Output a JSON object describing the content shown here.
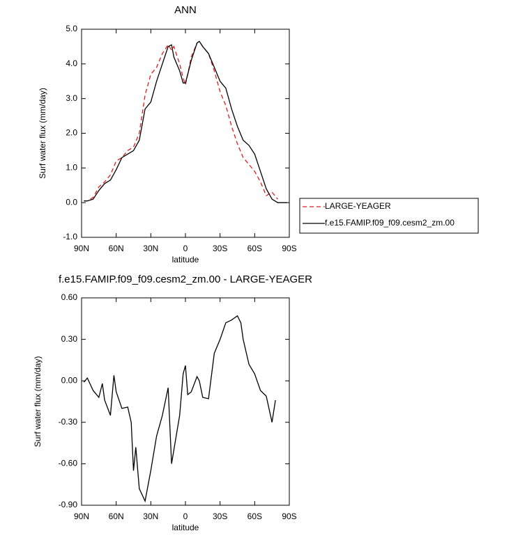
{
  "chart_data": [
    {
      "type": "line",
      "title": "ANN",
      "x_label": "latitude",
      "y_label": "Surf water flux (mm/day)",
      "x": [
        88,
        85,
        80,
        75,
        70,
        65,
        60,
        55,
        50,
        45,
        40,
        35,
        30,
        25,
        20,
        15,
        12,
        10,
        5,
        2,
        0,
        -2,
        -5,
        -10,
        -12,
        -15,
        -20,
        -25,
        -30,
        -35,
        -40,
        -45,
        -50,
        -55,
        -60,
        -65,
        -70,
        -75,
        -80,
        -85,
        -88
      ],
      "series": [
        {
          "name": "LARGE-YEAGER",
          "color": "#e31a1c",
          "style": "dashed",
          "values": [
            0.05,
            0.05,
            0.15,
            0.45,
            0.6,
            0.8,
            1.2,
            1.3,
            1.5,
            1.6,
            2.0,
            3.1,
            3.7,
            3.9,
            4.3,
            4.55,
            4.4,
            4.5,
            4.0,
            3.6,
            3.4,
            3.7,
            4.2,
            4.6,
            4.65,
            4.5,
            4.3,
            3.8,
            3.2,
            2.8,
            2.2,
            1.7,
            1.3,
            1.1,
            0.9,
            0.6,
            0.2,
            0.3,
            0.1,
            null,
            null
          ]
        },
        {
          "name": "f.e15.FAMIP.f09_f09.cesm2_zm.00",
          "color": "#000000",
          "style": "solid",
          "values": [
            0.05,
            0.05,
            0.1,
            0.35,
            0.55,
            0.65,
            0.95,
            1.3,
            1.4,
            1.5,
            1.8,
            2.7,
            2.9,
            3.5,
            4.0,
            4.5,
            4.55,
            4.2,
            3.8,
            3.45,
            3.45,
            3.7,
            4.1,
            4.6,
            4.65,
            4.5,
            4.3,
            3.9,
            3.5,
            3.3,
            2.7,
            2.2,
            1.8,
            1.65,
            1.4,
            0.9,
            0.4,
            0.1,
            0.0,
            0.0,
            0.0
          ]
        }
      ],
      "xlim": [
        90,
        -90
      ],
      "xticks": [
        {
          "value": 90,
          "label": "90N"
        },
        {
          "value": 60,
          "label": "60N"
        },
        {
          "value": 30,
          "label": "30N"
        },
        0,
        {
          "value": -30,
          "label": "30S"
        },
        {
          "value": -60,
          "label": "60S"
        },
        {
          "value": -90,
          "label": "90S"
        }
      ],
      "ylim": [
        -1,
        5
      ],
      "yticks": [
        {
          "value": -1,
          "label": "-1.0"
        },
        {
          "value": 0,
          "label": "0.0"
        },
        {
          "value": 1,
          "label": "1.0"
        },
        {
          "value": 2,
          "label": "2.0"
        },
        {
          "value": 3,
          "label": "3.0"
        },
        {
          "value": 4,
          "label": "4.0"
        },
        {
          "value": 5,
          "label": "5.0"
        }
      ],
      "legend": "right"
    },
    {
      "type": "line",
      "title": "f.e15.FAMIP.f09_f09.cesm2_zm.00 - LARGE-YEAGER",
      "x_label": "latitude",
      "y_label": "Surf water flux (mm/day)",
      "x": [
        88,
        85,
        80,
        75,
        72,
        70,
        65,
        62,
        60,
        55,
        50,
        47,
        45,
        43,
        40,
        35,
        30,
        25,
        20,
        15,
        12,
        10,
        5,
        2,
        0,
        -2,
        -5,
        -10,
        -12,
        -15,
        -20,
        -25,
        -30,
        -35,
        -40,
        -45,
        -48,
        -50,
        -55,
        -60,
        -65,
        -70,
        -75,
        -78
      ],
      "series": [
        {
          "color": "#000000",
          "style": "solid",
          "values": [
            -0.01,
            0.02,
            -0.07,
            -0.12,
            -0.02,
            -0.14,
            -0.25,
            0.04,
            -0.08,
            -0.2,
            -0.19,
            -0.3,
            -0.65,
            -0.48,
            -0.78,
            -0.87,
            -0.65,
            -0.4,
            -0.25,
            -0.05,
            -0.6,
            -0.5,
            -0.25,
            0.05,
            0.11,
            -0.1,
            -0.08,
            0.03,
            0.0,
            -0.12,
            -0.13,
            0.2,
            0.3,
            0.42,
            0.44,
            0.47,
            0.42,
            0.3,
            0.12,
            0.05,
            -0.07,
            -0.11,
            -0.3,
            -0.14
          ]
        }
      ],
      "xlim": [
        90,
        -90
      ],
      "xticks": [
        {
          "value": 90,
          "label": "90N"
        },
        {
          "value": 60,
          "label": "60N"
        },
        {
          "value": 30,
          "label": "30N"
        },
        0,
        {
          "value": -30,
          "label": "30S"
        },
        {
          "value": -60,
          "label": "60S"
        },
        {
          "value": -90,
          "label": "90S"
        }
      ],
      "ylim": [
        -0.9,
        0.6
      ],
      "yticks": [
        {
          "value": -0.9,
          "label": "-0.90"
        },
        {
          "value": -0.6,
          "label": "-0.60"
        },
        {
          "value": -0.3,
          "label": "-0.30"
        },
        {
          "value": 0,
          "label": "0.00"
        },
        {
          "value": 0.3,
          "label": "0.30"
        },
        {
          "value": 0.6,
          "label": "0.60"
        }
      ]
    }
  ]
}
